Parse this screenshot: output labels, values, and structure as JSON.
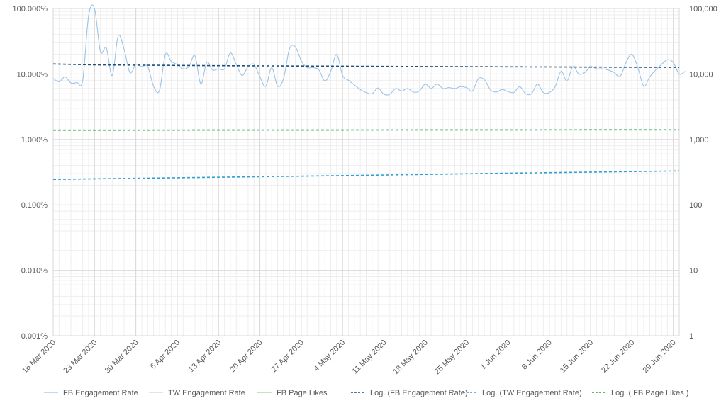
{
  "chart_data": {
    "type": "line",
    "title": "",
    "xlabel": "",
    "ylabel": "",
    "x_range": [
      "2020-03-16",
      "2020-06-30"
    ],
    "x_ticks": [
      {
        "date": "2020-03-16",
        "label": "16 Mar 2020"
      },
      {
        "date": "2020-03-23",
        "label": "23 Mar 2020"
      },
      {
        "date": "2020-03-30",
        "label": "30 Mar 2020"
      },
      {
        "date": "2020-04-06",
        "label": "6 Apr 2020"
      },
      {
        "date": "2020-04-13",
        "label": "13 Apr 2020"
      },
      {
        "date": "2020-04-20",
        "label": "20 Apr 2020"
      },
      {
        "date": "2020-04-27",
        "label": "27 Apr 2020"
      },
      {
        "date": "2020-05-04",
        "label": "4 May 2020"
      },
      {
        "date": "2020-05-11",
        "label": "11 May 2020"
      },
      {
        "date": "2020-05-18",
        "label": "18 May 2020"
      },
      {
        "date": "2020-05-25",
        "label": "25 May 2020"
      },
      {
        "date": "2020-06-01",
        "label": "1 Jun 2020"
      },
      {
        "date": "2020-06-08",
        "label": "8 Jun 2020"
      },
      {
        "date": "2020-06-15",
        "label": "15 Jun 2020"
      },
      {
        "date": "2020-06-22",
        "label": "22 Jun 2020"
      },
      {
        "date": "2020-06-29",
        "label": "29 Jun 2020"
      }
    ],
    "y_left": {
      "scale": "log",
      "range": [
        0.001,
        100
      ],
      "unit": "%",
      "tick_values": [
        0.001,
        0.01,
        0.1,
        1,
        10,
        100
      ],
      "tick_labels": [
        "0.001%",
        "0.010%",
        "0.100%",
        "1.000%",
        "10.000%",
        "100.000%"
      ]
    },
    "y_right": {
      "scale": "log",
      "range": [
        1,
        100000
      ],
      "tick_values": [
        1,
        10,
        100,
        1000,
        10000,
        100000
      ],
      "tick_labels": [
        "1",
        "10",
        "100",
        "1,000",
        "10,000",
        "100,000"
      ]
    },
    "grid": true,
    "legend_position": "bottom",
    "series": [
      {
        "name": "FB Engagement Rate",
        "style": "solid",
        "color": "#9DC3E6",
        "axis": "left",
        "points": [
          [
            "2020-03-16",
            8.6
          ],
          [
            "2020-03-17",
            7.6
          ],
          [
            "2020-03-18",
            9.1
          ],
          [
            "2020-03-19",
            7.3
          ],
          [
            "2020-03-20",
            7.4
          ],
          [
            "2020-03-21",
            8.0
          ],
          [
            "2020-03-22",
            78
          ],
          [
            "2020-03-23",
            100
          ],
          [
            "2020-03-24",
            22
          ],
          [
            "2020-03-25",
            25
          ],
          [
            "2020-03-26",
            9.5
          ],
          [
            "2020-03-27",
            38
          ],
          [
            "2020-03-28",
            24
          ],
          [
            "2020-03-29",
            10.5
          ],
          [
            "2020-03-30",
            14
          ],
          [
            "2020-03-31",
            13
          ],
          [
            "2020-04-01",
            13
          ],
          [
            "2020-04-02",
            6.5
          ],
          [
            "2020-04-03",
            5.6
          ],
          [
            "2020-04-04",
            20
          ],
          [
            "2020-04-05",
            15.5
          ],
          [
            "2020-04-06",
            14
          ],
          [
            "2020-04-07",
            12
          ],
          [
            "2020-04-08",
            13
          ],
          [
            "2020-04-09",
            19
          ],
          [
            "2020-04-10",
            7
          ],
          [
            "2020-04-11",
            15
          ],
          [
            "2020-04-12",
            11.5
          ],
          [
            "2020-04-13",
            12
          ],
          [
            "2020-04-14",
            12
          ],
          [
            "2020-04-15",
            21
          ],
          [
            "2020-04-16",
            14
          ],
          [
            "2020-04-17",
            9.5
          ],
          [
            "2020-04-18",
            13
          ],
          [
            "2020-04-19",
            14
          ],
          [
            "2020-04-20",
            9
          ],
          [
            "2020-04-21",
            6.5
          ],
          [
            "2020-04-22",
            12.5
          ],
          [
            "2020-04-23",
            6.5
          ],
          [
            "2020-04-24",
            8.5
          ],
          [
            "2020-04-25",
            24
          ],
          [
            "2020-04-26",
            26
          ],
          [
            "2020-04-27",
            16
          ],
          [
            "2020-04-28",
            12.5
          ],
          [
            "2020-04-29",
            12.5
          ],
          [
            "2020-04-30",
            11.5
          ],
          [
            "2020-05-01",
            7.8
          ],
          [
            "2020-05-02",
            11
          ],
          [
            "2020-05-03",
            20
          ],
          [
            "2020-05-04",
            9.5
          ],
          [
            "2020-05-05",
            8
          ],
          [
            "2020-05-06",
            6.8
          ],
          [
            "2020-05-07",
            5.8
          ],
          [
            "2020-05-08",
            5.2
          ],
          [
            "2020-05-09",
            5
          ],
          [
            "2020-05-10",
            6.1
          ],
          [
            "2020-05-11",
            4.9
          ],
          [
            "2020-05-12",
            4.9
          ],
          [
            "2020-05-13",
            6
          ],
          [
            "2020-05-14",
            5.5
          ],
          [
            "2020-05-15",
            6
          ],
          [
            "2020-05-16",
            5.3
          ],
          [
            "2020-05-17",
            5.5
          ],
          [
            "2020-05-18",
            7
          ],
          [
            "2020-05-19",
            6
          ],
          [
            "2020-05-20",
            7
          ],
          [
            "2020-05-21",
            6
          ],
          [
            "2020-05-22",
            6.2
          ],
          [
            "2020-05-23",
            6
          ],
          [
            "2020-05-24",
            6.4
          ],
          [
            "2020-05-25",
            6.2
          ],
          [
            "2020-05-26",
            5.5
          ],
          [
            "2020-05-27",
            8.5
          ],
          [
            "2020-05-28",
            8.2
          ],
          [
            "2020-05-29",
            5.8
          ],
          [
            "2020-05-30",
            5.3
          ],
          [
            "2020-05-31",
            5.8
          ],
          [
            "2020-06-01",
            5.4
          ],
          [
            "2020-06-02",
            5.2
          ],
          [
            "2020-06-03",
            6.4
          ],
          [
            "2020-06-04",
            5
          ],
          [
            "2020-06-05",
            5
          ],
          [
            "2020-06-06",
            7
          ],
          [
            "2020-06-07",
            5.2
          ],
          [
            "2020-06-08",
            5.2
          ],
          [
            "2020-06-09",
            6.4
          ],
          [
            "2020-06-10",
            11
          ],
          [
            "2020-06-11",
            7.8
          ],
          [
            "2020-06-12",
            13
          ],
          [
            "2020-06-13",
            10
          ],
          [
            "2020-06-14",
            10.5
          ],
          [
            "2020-06-15",
            13
          ],
          [
            "2020-06-16",
            12
          ],
          [
            "2020-06-17",
            12
          ],
          [
            "2020-06-18",
            11.5
          ],
          [
            "2020-06-19",
            10.5
          ],
          [
            "2020-06-20",
            9.2
          ],
          [
            "2020-06-21",
            15
          ],
          [
            "2020-06-22",
            20
          ],
          [
            "2020-06-23",
            12.5
          ],
          [
            "2020-06-24",
            6.5
          ],
          [
            "2020-06-25",
            9
          ],
          [
            "2020-06-26",
            11.5
          ],
          [
            "2020-06-27",
            14
          ],
          [
            "2020-06-28",
            16.5
          ],
          [
            "2020-06-29",
            15
          ],
          [
            "2020-06-30",
            10
          ],
          [
            "2020-07-01",
            11
          ]
        ]
      },
      {
        "name": "TW Engagement Rate",
        "style": "solid",
        "color": "#BDD7EE",
        "axis": "left",
        "points": []
      },
      {
        "name": "FB Page Likes",
        "style": "solid",
        "color": "#A9D08E",
        "axis": "right",
        "points": []
      },
      {
        "name": "Log. (FB Engagement Rate)",
        "style": "dashed",
        "color": "#1F4E79",
        "axis": "left",
        "points": [
          [
            "2020-03-16",
            14.2
          ],
          [
            "2020-03-23",
            13.8
          ],
          [
            "2020-04-13",
            13.4
          ],
          [
            "2020-05-18",
            13.0
          ],
          [
            "2020-06-30",
            12.6
          ]
        ]
      },
      {
        "name": "Log. (TW Engagement Rate)",
        "style": "dashed",
        "color": "#2E9FD4",
        "axis": "left",
        "points": [
          [
            "2020-03-16",
            0.245
          ],
          [
            "2020-04-06",
            0.26
          ],
          [
            "2020-05-04",
            0.28
          ],
          [
            "2020-06-01",
            0.305
          ],
          [
            "2020-06-30",
            0.33
          ]
        ]
      },
      {
        "name": "Log. ( FB Page Likes )",
        "style": "dashed",
        "color": "#1E9E4A",
        "axis": "right",
        "points": [
          [
            "2020-03-16",
            1385
          ],
          [
            "2020-06-30",
            1400
          ]
        ]
      }
    ]
  }
}
